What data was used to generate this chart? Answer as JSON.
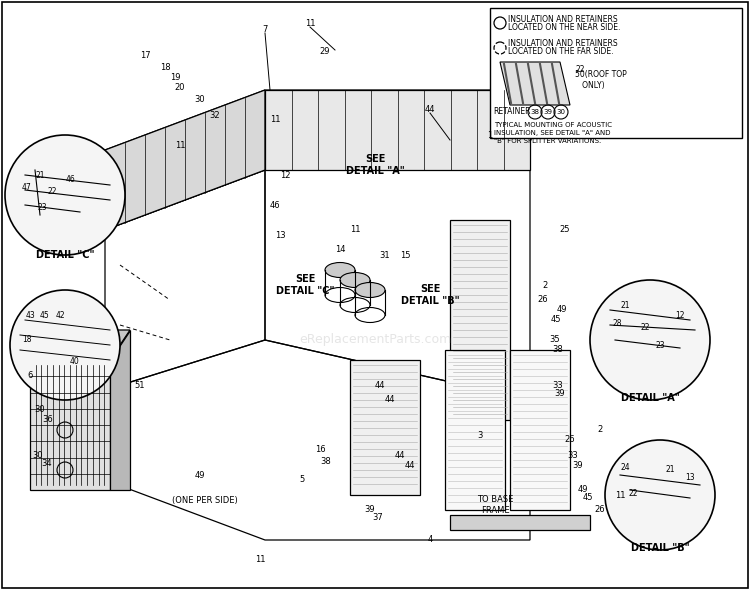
{
  "title": "",
  "bg_color": "#ffffff",
  "border_color": "#000000",
  "line_color": "#000000",
  "text_color": "#000000",
  "note_text": "TYPICAL MOUNTING OF ACOUSTIC\nINSULATION, SEE DETAIL \"A\" AND\n\"B\" FOR SPLITTER VARIATIONS.",
  "retainer_text": "RETAINER",
  "detail_a_label": "DETAIL \"A\"",
  "detail_b_label": "DETAIL \"B\"",
  "detail_c_label": "DETAIL \"C\"",
  "see_detail_a": "SEE\nDETAIL \"A\"",
  "see_detail_b": "SEE\nDETAIL \"B\"",
  "see_detail_c": "SEE\nDETAIL \"C\"",
  "one_per_side": "(ONE PER SIDE)",
  "to_base_frame": "TO BASE\nFRAME",
  "roof_top_only": "50(ROOF TOP\n   ONLY)",
  "watermark": "eReplacementParts.com"
}
